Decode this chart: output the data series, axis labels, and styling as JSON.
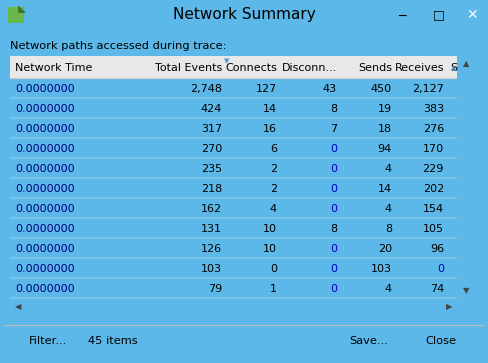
{
  "title": "Network Summary",
  "subtitle": "Network paths accessed during trace:",
  "columns": [
    "Network Time",
    "Total Events",
    "Connects",
    "Disconn...",
    "Sends",
    "Receives",
    "S"
  ],
  "col_align": [
    "left",
    "right",
    "right",
    "right",
    "right",
    "right",
    "left"
  ],
  "rows": [
    [
      "0.0000000",
      "2,748",
      "127",
      "43",
      "450",
      "2,127"
    ],
    [
      "0.0000000",
      "424",
      "14",
      "8",
      "19",
      "383"
    ],
    [
      "0.0000000",
      "317",
      "16",
      "7",
      "18",
      "276"
    ],
    [
      "0.0000000",
      "270",
      "6",
      "0",
      "94",
      "170"
    ],
    [
      "0.0000000",
      "235",
      "2",
      "0",
      "4",
      "229"
    ],
    [
      "0.0000000",
      "218",
      "2",
      "0",
      "14",
      "202"
    ],
    [
      "0.0000000",
      "162",
      "4",
      "0",
      "4",
      "154"
    ],
    [
      "0.0000000",
      "131",
      "10",
      "8",
      "8",
      "105"
    ],
    [
      "0.0000000",
      "126",
      "10",
      "0",
      "20",
      "96"
    ],
    [
      "0.0000000",
      "103",
      "0",
      "0",
      "103",
      "0"
    ],
    [
      "0.0000000",
      "79",
      "1",
      "0",
      "4",
      "74"
    ]
  ],
  "zero_cols": [
    3,
    4,
    5
  ],
  "zero_color": "#0000cc",
  "normal_color": "#000000",
  "bg_color": "#dce9f5",
  "title_bar_color": "#9dd4f0",
  "window_border_color": "#5bb8e8",
  "table_bg": "#ffffff",
  "content_bg": "#eaf2fb",
  "button_text": [
    "Filter...",
    "45 items",
    "Save...",
    "Close"
  ],
  "font_size": 8.0,
  "header_font_size": 8.0
}
